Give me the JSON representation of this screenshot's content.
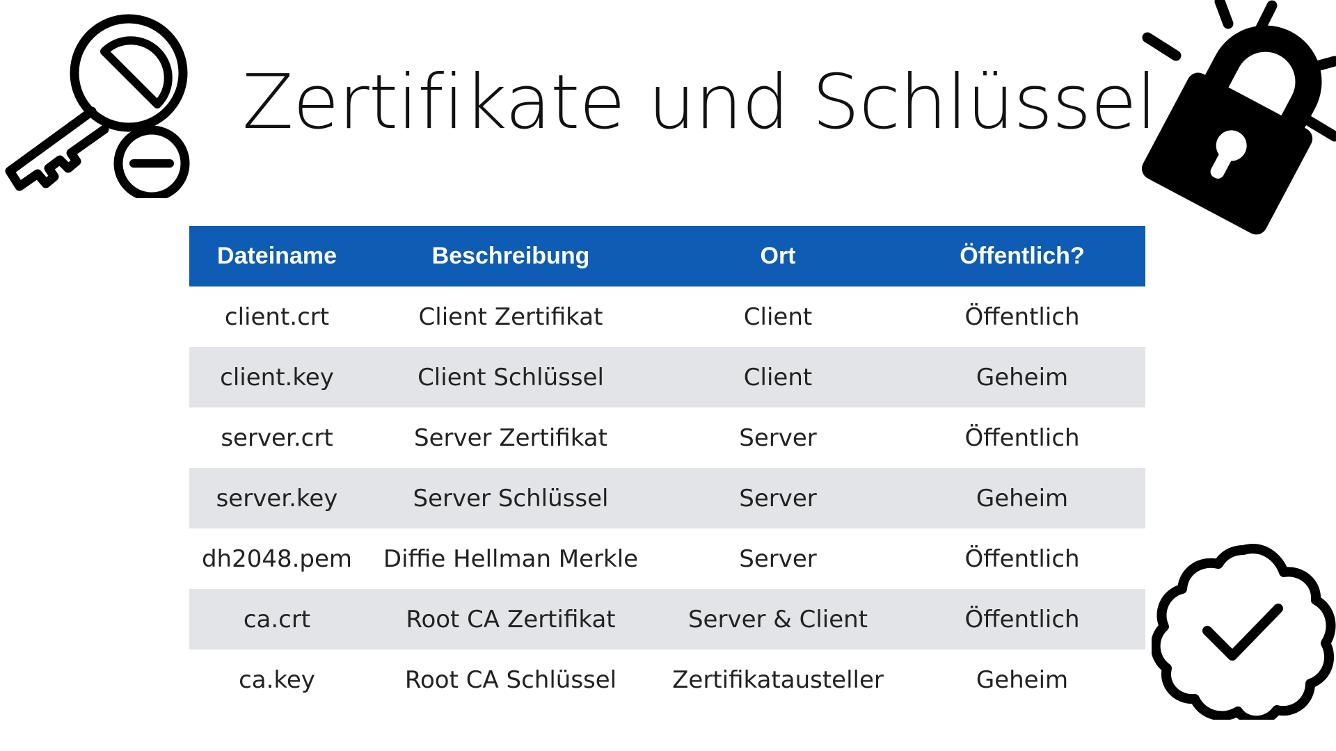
{
  "title": "Zertifikate und Schlüssel",
  "icons": {
    "key": "key-remove-icon",
    "lock": "padlock-icon",
    "badge": "verified-badge-icon"
  },
  "colors": {
    "header_background": "#0e5cb3",
    "header_text": "#ffffff",
    "stripe_row": "#e3e4e8",
    "text": "#222222"
  },
  "table": {
    "headers": [
      "Dateiname",
      "Beschreibung",
      "Ort",
      "Öffentlich?"
    ],
    "rows": [
      [
        "client.crt",
        "Client Zertifikat",
        "Client",
        "Öffentlich"
      ],
      [
        "client.key",
        "Client Schlüssel",
        "Client",
        "Geheim"
      ],
      [
        "server.crt",
        "Server Zertifikat",
        "Server",
        "Öffentlich"
      ],
      [
        "server.key",
        "Server Schlüssel",
        "Server",
        "Geheim"
      ],
      [
        "dh2048.pem",
        "Diffie Hellman Merkle",
        "Server",
        "Öffentlich"
      ],
      [
        "ca.crt",
        "Root CA Zertifikat",
        "Server & Client",
        "Öffentlich"
      ],
      [
        "ca.key",
        "Root CA Schlüssel",
        "Zertifikatausteller",
        "Geheim"
      ]
    ]
  }
}
